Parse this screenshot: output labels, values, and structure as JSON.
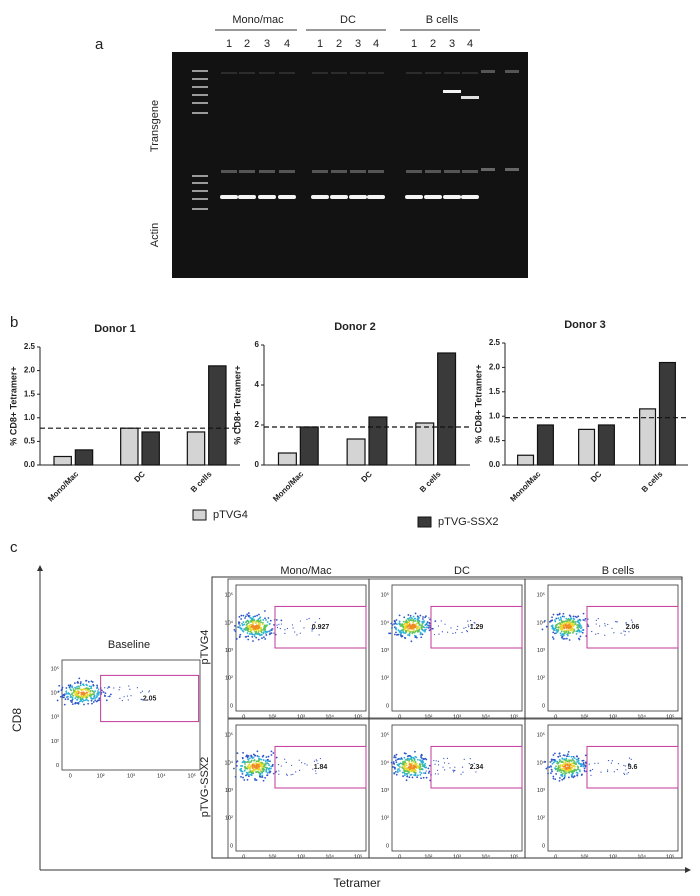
{
  "panel_a": {
    "label": "a",
    "groups": [
      "Mono/mac",
      "DC",
      "B cells"
    ],
    "lanes": [
      "1",
      "2",
      "3",
      "4"
    ],
    "transgene_label": "Transgene",
    "actin_label": "Actin"
  },
  "panel_b": {
    "label": "b"
  },
  "chart_data": [
    {
      "type": "bar",
      "title": "Donor 1",
      "y_label": "% CD8+ Tetramer+",
      "categories": [
        "Mono/Mac",
        "DC",
        "B cells"
      ],
      "series": [
        {
          "values": [
            0.18,
            0.78,
            0.7
          ]
        },
        {
          "values": [
            0.32,
            0.7,
            2.1
          ]
        }
      ],
      "ylim": [
        0,
        2.5
      ],
      "yticks": [
        {
          "value": 0,
          "label": "0.0"
        },
        0.5,
        {
          "value": 1,
          "label": "1.0"
        },
        1.5,
        {
          "value": 2,
          "label": "2.0"
        },
        2.5
      ],
      "threshold": 0.78
    },
    {
      "type": "bar",
      "title": "Donor 2",
      "y_label": "% CD8+ Tetramer+",
      "categories": [
        "Mono/Mac",
        "DC",
        "B cells"
      ],
      "series": [
        {
          "values": [
            0.6,
            1.3,
            2.1
          ]
        },
        {
          "values": [
            1.9,
            2.4,
            5.6
          ]
        }
      ],
      "ylim": [
        0,
        6
      ],
      "yticks": [
        0,
        2,
        4,
        6
      ],
      "threshold": 1.9
    },
    {
      "type": "bar",
      "title": "Donor 3",
      "y_label": "% CD8+ Tetramer+",
      "categories": [
        "Mono/Mac",
        "DC",
        "B cells"
      ],
      "series": [
        {
          "values": [
            0.2,
            0.73,
            1.15
          ]
        },
        {
          "values": [
            0.82,
            0.82,
            2.1
          ]
        }
      ],
      "ylim": [
        0,
        2.5
      ],
      "yticks": [
        {
          "value": 0,
          "label": "0.0"
        },
        0.5,
        {
          "value": 1,
          "label": "1.0"
        },
        1.5,
        {
          "value": 2,
          "label": "2.0"
        },
        2.5
      ],
      "threshold": 0.97
    }
  ],
  "legend": {
    "items": [
      {
        "name": "pTVG4",
        "color": "#d4d4d4"
      },
      {
        "name": "pTVG-SSX2",
        "color": "#3a3a3a"
      }
    ]
  },
  "panel_c": {
    "label": "c",
    "y_axis": "CD8",
    "x_axis": "Tetramer",
    "baseline": {
      "title": "Baseline",
      "gate": 2.05
    },
    "columns": [
      "Mono/Mac",
      "DC",
      "B cells"
    ],
    "rows": [
      {
        "label": "pTVG4",
        "gates": [
          0.927,
          1.29,
          2.06
        ]
      },
      {
        "label": "pTVG-SSX2",
        "gates": [
          1.84,
          2.34,
          5.6
        ]
      }
    ],
    "y_ticks": [
      "10⁵",
      "10⁴",
      "10³",
      "10²",
      "0"
    ],
    "x_ticks": [
      "0",
      "10²",
      "10³",
      "10⁴",
      "10⁵"
    ]
  }
}
